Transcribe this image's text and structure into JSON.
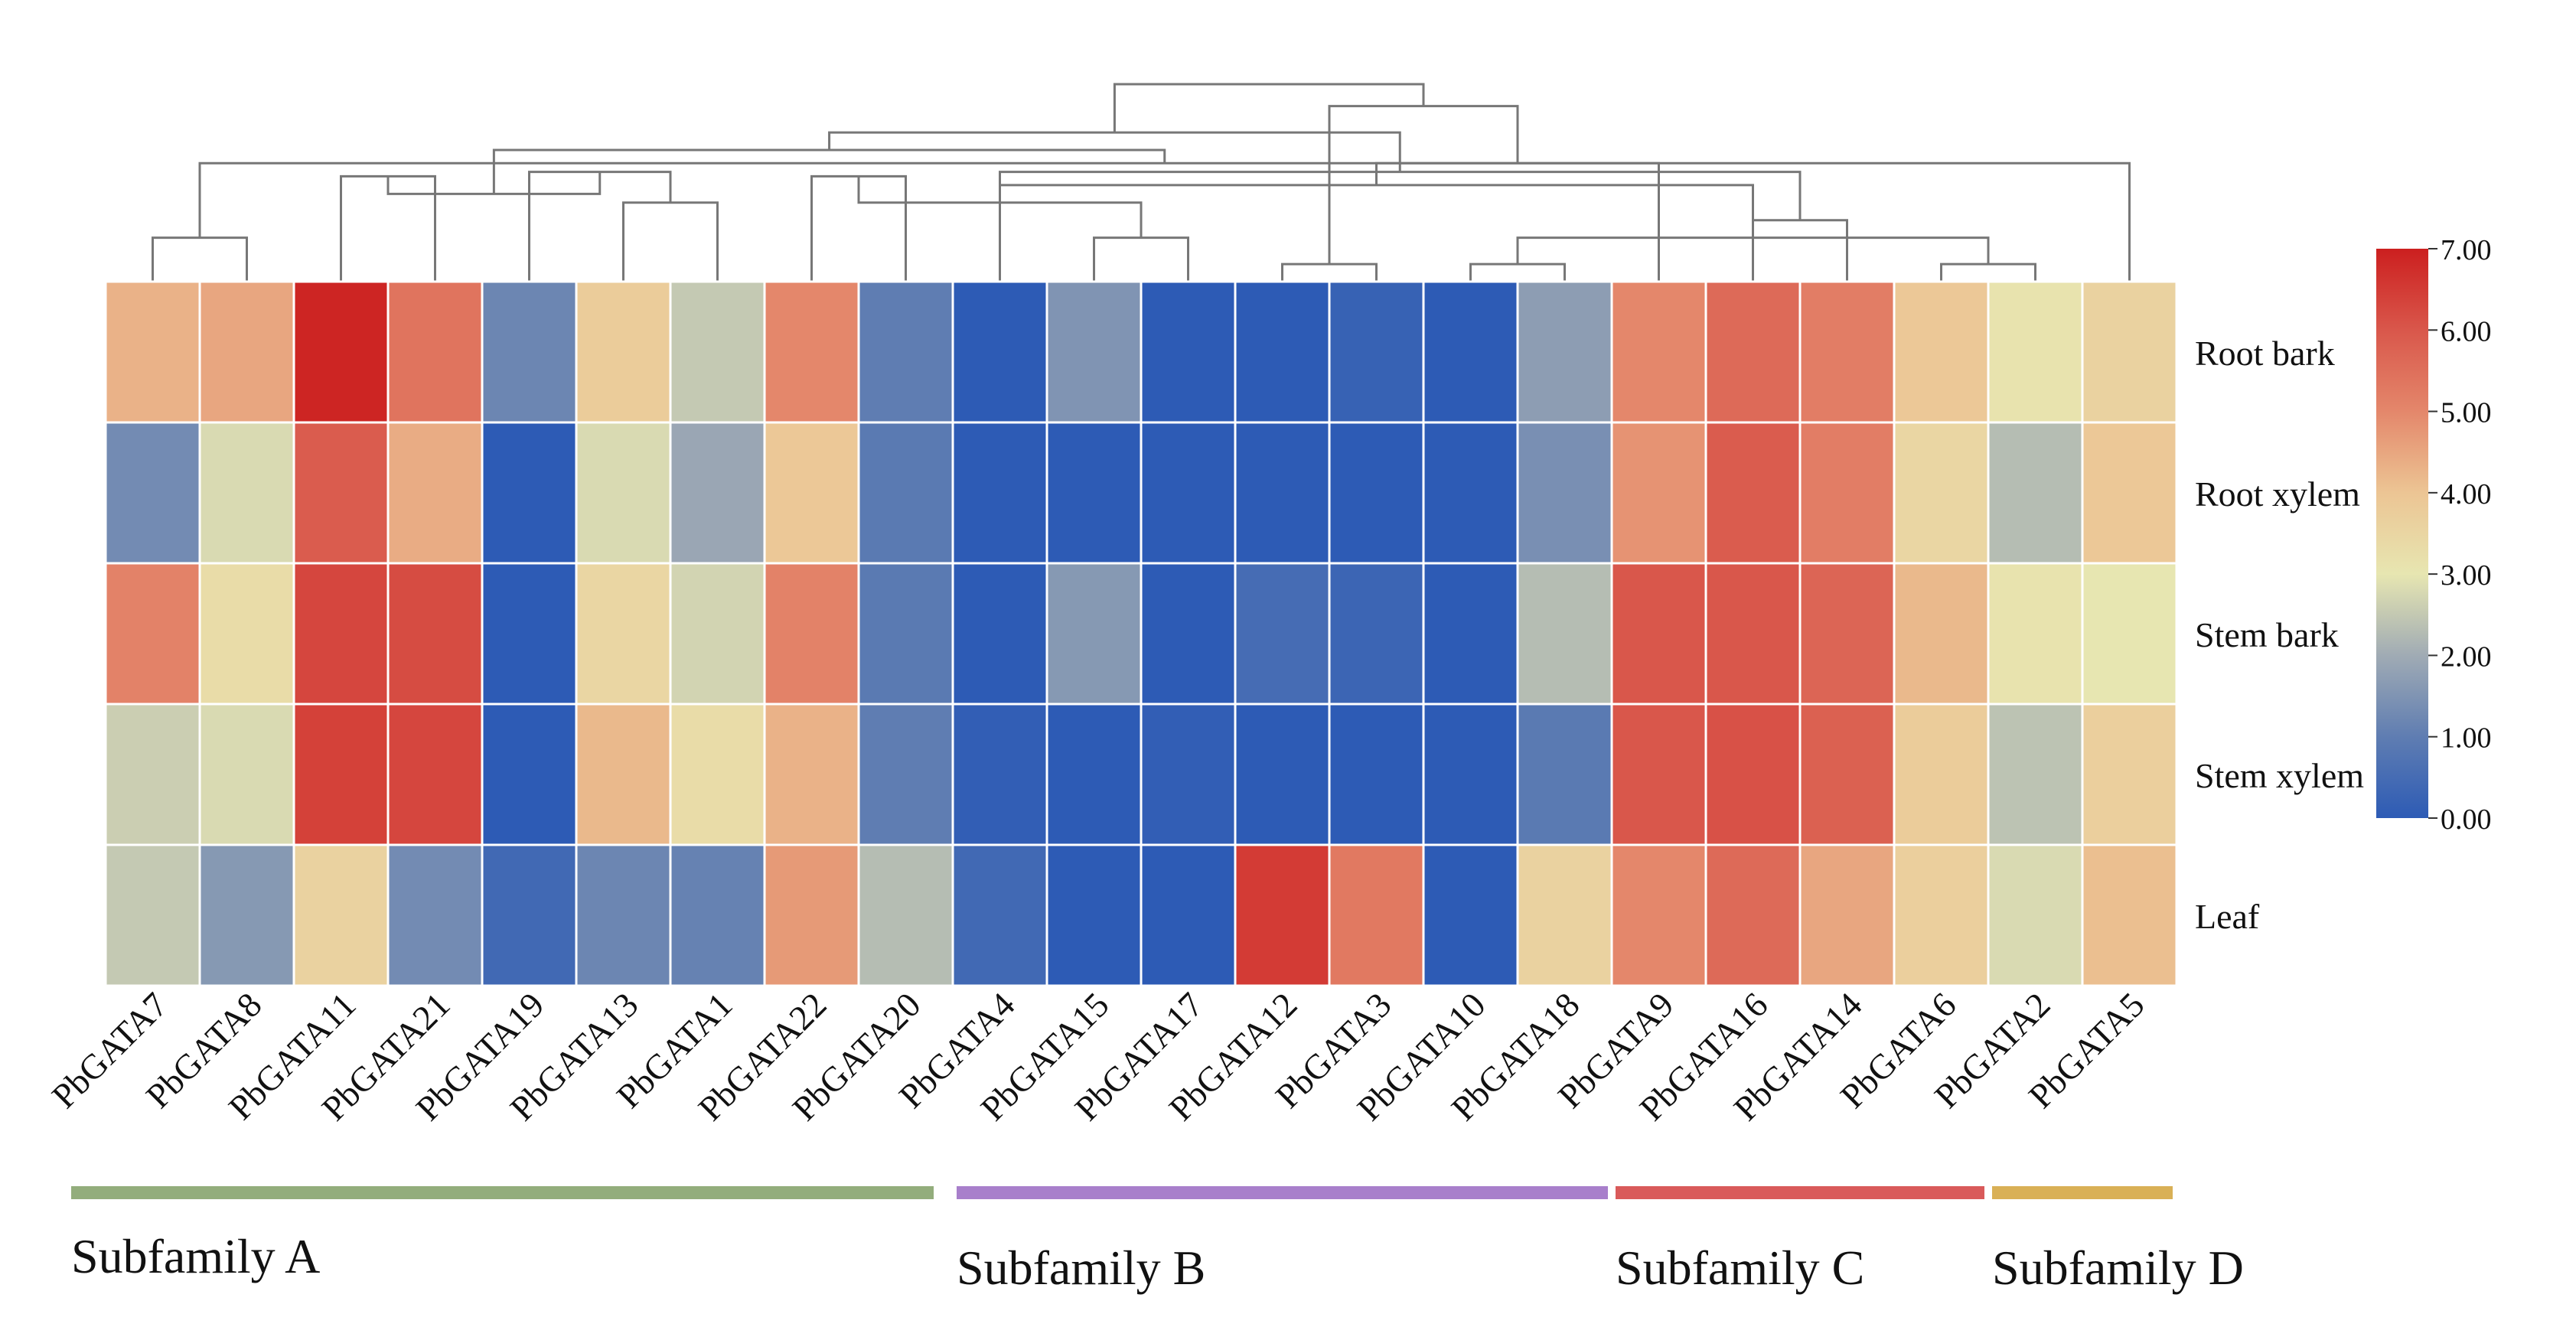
{
  "chart_data": {
    "type": "heatmap",
    "title": "",
    "columns": [
      "PbGATA7",
      "PbGATA8",
      "PbGATA11",
      "PbGATA21",
      "PbGATA19",
      "PbGATA13",
      "PbGATA1",
      "PbGATA22",
      "PbGATA20",
      "PbGATA4",
      "PbGATA15",
      "PbGATA17",
      "PbGATA12",
      "PbGATA3",
      "PbGATA10",
      "PbGATA18",
      "PbGATA9",
      "PbGATA16",
      "PbGATA14",
      "PbGATA6",
      "PbGATA2",
      "PbGATA5"
    ],
    "rows": [
      "Root bark",
      "Root xylem",
      "Stem bark",
      "Stem xylem",
      "Leaf"
    ],
    "values": [
      [
        4.3,
        4.5,
        6.9,
        5.4,
        1.2,
        3.8,
        2.5,
        5.0,
        1.0,
        0.0,
        1.5,
        0.0,
        0.0,
        0.2,
        0.0,
        1.7,
        5.0,
        5.6,
        5.2,
        3.9,
        3.1,
        3.6
      ],
      [
        1.3,
        2.8,
        5.9,
        4.4,
        0.0,
        2.8,
        1.9,
        3.9,
        0.9,
        0.0,
        0.0,
        0.0,
        0.0,
        0.0,
        0.0,
        1.4,
        4.8,
        5.9,
        5.2,
        3.5,
        2.3,
        3.9
      ],
      [
        5.1,
        3.3,
        6.3,
        6.2,
        0.0,
        3.5,
        2.7,
        5.1,
        0.9,
        0.0,
        1.6,
        0.0,
        0.5,
        0.3,
        0.0,
        2.3,
        6.0,
        6.0,
        5.7,
        4.2,
        3.1,
        3.0
      ],
      [
        2.6,
        2.8,
        6.4,
        6.3,
        0.0,
        4.2,
        3.3,
        4.3,
        1.0,
        0.1,
        0.0,
        0.1,
        0.0,
        0.0,
        0.0,
        0.9,
        6.0,
        6.1,
        5.8,
        3.8,
        2.4,
        3.7
      ],
      [
        2.5,
        1.6,
        3.6,
        1.3,
        0.4,
        1.2,
        1.1,
        4.7,
        2.3,
        0.4,
        0.0,
        0.0,
        6.5,
        5.3,
        0.0,
        3.6,
        5.0,
        5.6,
        4.5,
        3.7,
        2.8,
        4.1
      ]
    ],
    "color_scale": {
      "min": 0,
      "max": 7,
      "stops": [
        {
          "value": 0,
          "color": "#2d5bb5"
        },
        {
          "value": 1,
          "color": "#5f7db2"
        },
        {
          "value": 2,
          "color": "#a0abb4"
        },
        {
          "value": 3,
          "color": "#e7e6b1"
        },
        {
          "value": 4,
          "color": "#ecc594"
        },
        {
          "value": 5,
          "color": "#e4876b"
        },
        {
          "value": 6,
          "color": "#d9574b"
        },
        {
          "value": 7,
          "color": "#cc1f1f"
        }
      ],
      "tick_labels": [
        "0.00",
        "1.00",
        "2.00",
        "3.00",
        "4.00",
        "5.00",
        "6.00",
        "7.00"
      ]
    },
    "dendrogram": {
      "merges": [
        [
          0,
          1,
          1.0
        ],
        [
          12,
          13,
          0.4
        ],
        [
          14,
          15,
          0.4
        ],
        [
          19,
          20,
          0.4
        ],
        [
          2,
          3,
          2.4
        ],
        [
          17,
          18,
          1.4
        ],
        [
          5,
          6,
          1.8
        ],
        [
          10,
          11,
          1.0
        ],
        [
          8,
          7,
          2.4
        ],
        [
          24,
          25,
          1.0
        ],
        [
          21,
          22,
          2.7
        ],
        [
          4,
          28,
          2.5
        ],
        [
          31,
          9,
          2.2
        ],
        [
          29,
          30,
          1.8
        ],
        [
          26,
          33,
          2.0
        ],
        [
          27,
          35,
          2.5
        ],
        [
          36,
          32,
          3.0
        ],
        [
          34,
          16,
          2.7
        ],
        [
          23,
          39,
          4.0
        ],
        [
          37,
          38,
          3.4
        ],
        [
          40,
          41,
          4.5
        ]
      ],
      "max_height": 4.5,
      "line_color": "#777777"
    },
    "subfamilies": [
      {
        "label": "Subfamily A",
        "color": "#93ad7c",
        "start": 0,
        "end": 8
      },
      {
        "label": "Subfamily B",
        "color": "#a87fcb",
        "start": 9,
        "end": 15
      },
      {
        "label": "Subfamily C",
        "color": "#d95a5a",
        "start": 16,
        "end": 19
      },
      {
        "label": "Subfamily D",
        "color": "#d9b056",
        "start": 20,
        "end": 21
      }
    ]
  }
}
